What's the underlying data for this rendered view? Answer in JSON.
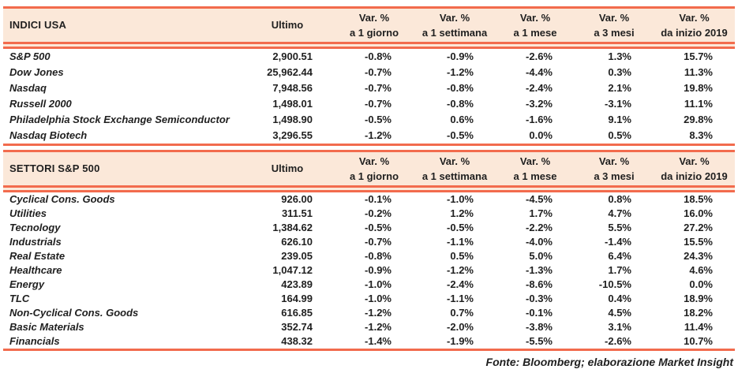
{
  "colors": {
    "accent_border": "#F26B4D",
    "header_bg": "#FBE8D9",
    "text_color": "#1F1F1F"
  },
  "chart_data": {
    "type": "table",
    "shared_columns": {
      "ultimo_label": "Ultimo",
      "var_header_line1": "Var. %",
      "var_periods": [
        "a 1 giorno",
        "a 1 settimana",
        "a 1 mese",
        "a 3 mesi",
        "da inizio 2019"
      ]
    },
    "tables": [
      {
        "title": "INDICI USA",
        "rows": [
          {
            "name": "S&P 500",
            "ultimo": "2,900.51",
            "vars": [
              "-0.8%",
              "-0.9%",
              "-2.6%",
              "1.3%",
              "15.7%"
            ]
          },
          {
            "name": "Dow Jones",
            "ultimo": "25,962.44",
            "vars": [
              "-0.7%",
              "-1.2%",
              "-4.4%",
              "0.3%",
              "11.3%"
            ]
          },
          {
            "name": "Nasdaq",
            "ultimo": "7,948.56",
            "vars": [
              "-0.7%",
              "-0.8%",
              "-2.4%",
              "2.1%",
              "19.8%"
            ]
          },
          {
            "name": "Russell 2000",
            "ultimo": "1,498.01",
            "vars": [
              "-0.7%",
              "-0.8%",
              "-3.2%",
              "-3.1%",
              "11.1%"
            ]
          },
          {
            "name": "Philadelphia Stock Exchange Semiconductor",
            "ultimo": "1,498.90",
            "vars": [
              "-0.5%",
              "0.6%",
              "-1.6%",
              "9.1%",
              "29.8%"
            ]
          },
          {
            "name": "Nasdaq Biotech",
            "ultimo": "3,296.55",
            "vars": [
              "-1.2%",
              "-0.5%",
              "0.0%",
              "0.5%",
              "8.3%"
            ]
          }
        ]
      },
      {
        "title": "SETTORI S&P 500",
        "rows": [
          {
            "name": "Cyclical Cons. Goods",
            "ultimo": "926.00",
            "vars": [
              "-0.1%",
              "-1.0%",
              "-4.5%",
              "0.8%",
              "18.5%"
            ]
          },
          {
            "name": "Utilities",
            "ultimo": "311.51",
            "vars": [
              "-0.2%",
              "1.2%",
              "1.7%",
              "4.7%",
              "16.0%"
            ]
          },
          {
            "name": "Tecnology",
            "ultimo": "1,384.62",
            "vars": [
              "-0.5%",
              "-0.5%",
              "-2.2%",
              "5.5%",
              "27.2%"
            ]
          },
          {
            "name": "Industrials",
            "ultimo": "626.10",
            "vars": [
              "-0.7%",
              "-1.1%",
              "-4.0%",
              "-1.4%",
              "15.5%"
            ]
          },
          {
            "name": "Real Estate",
            "ultimo": "239.05",
            "vars": [
              "-0.8%",
              "0.5%",
              "5.0%",
              "6.4%",
              "24.3%"
            ]
          },
          {
            "name": "Healthcare",
            "ultimo": "1,047.12",
            "vars": [
              "-0.9%",
              "-1.2%",
              "-1.3%",
              "1.7%",
              "4.6%"
            ]
          },
          {
            "name": "Energy",
            "ultimo": "423.89",
            "vars": [
              "-1.0%",
              "-2.4%",
              "-8.6%",
              "-10.5%",
              "0.0%"
            ]
          },
          {
            "name": "TLC",
            "ultimo": "164.99",
            "vars": [
              "-1.0%",
              "-1.1%",
              "-0.3%",
              "0.4%",
              "18.9%"
            ]
          },
          {
            "name": "Non-Cyclical Cons. Goods",
            "ultimo": "616.85",
            "vars": [
              "-1.2%",
              "0.7%",
              "-0.1%",
              "4.5%",
              "18.2%"
            ]
          },
          {
            "name": "Basic Materials",
            "ultimo": "352.74",
            "vars": [
              "-1.2%",
              "-2.0%",
              "-3.8%",
              "3.1%",
              "11.4%"
            ]
          },
          {
            "name": "Financials",
            "ultimo": "438.32",
            "vars": [
              "-1.4%",
              "-1.9%",
              "-5.5%",
              "-2.6%",
              "10.7%"
            ]
          }
        ]
      }
    ]
  },
  "footer": {
    "source_note": "Fonte: Bloomberg; elaborazione Market Insight"
  }
}
